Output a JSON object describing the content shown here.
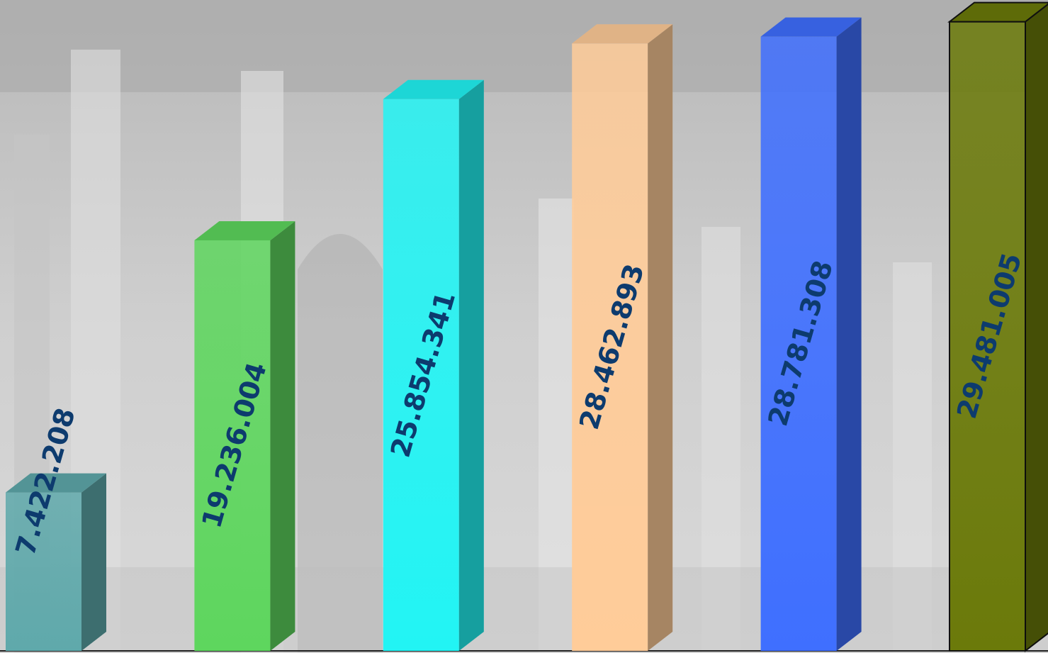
{
  "chart_data": {
    "type": "bar3d",
    "values": [
      7422208,
      19236004,
      25854341,
      28462893,
      28781308,
      29481005
    ],
    "value_labels": [
      "7.422.208",
      "19.236.004",
      "25.854.341",
      "28.462.893",
      "28.781.308",
      "29.481.005"
    ],
    "colors": [
      "#5fa9ab",
      "#5ed65e",
      "#22f4f4",
      "#ffcc99",
      "#3f6fff",
      "#6b7a0a"
    ],
    "ylim": [
      0,
      30000000
    ]
  }
}
